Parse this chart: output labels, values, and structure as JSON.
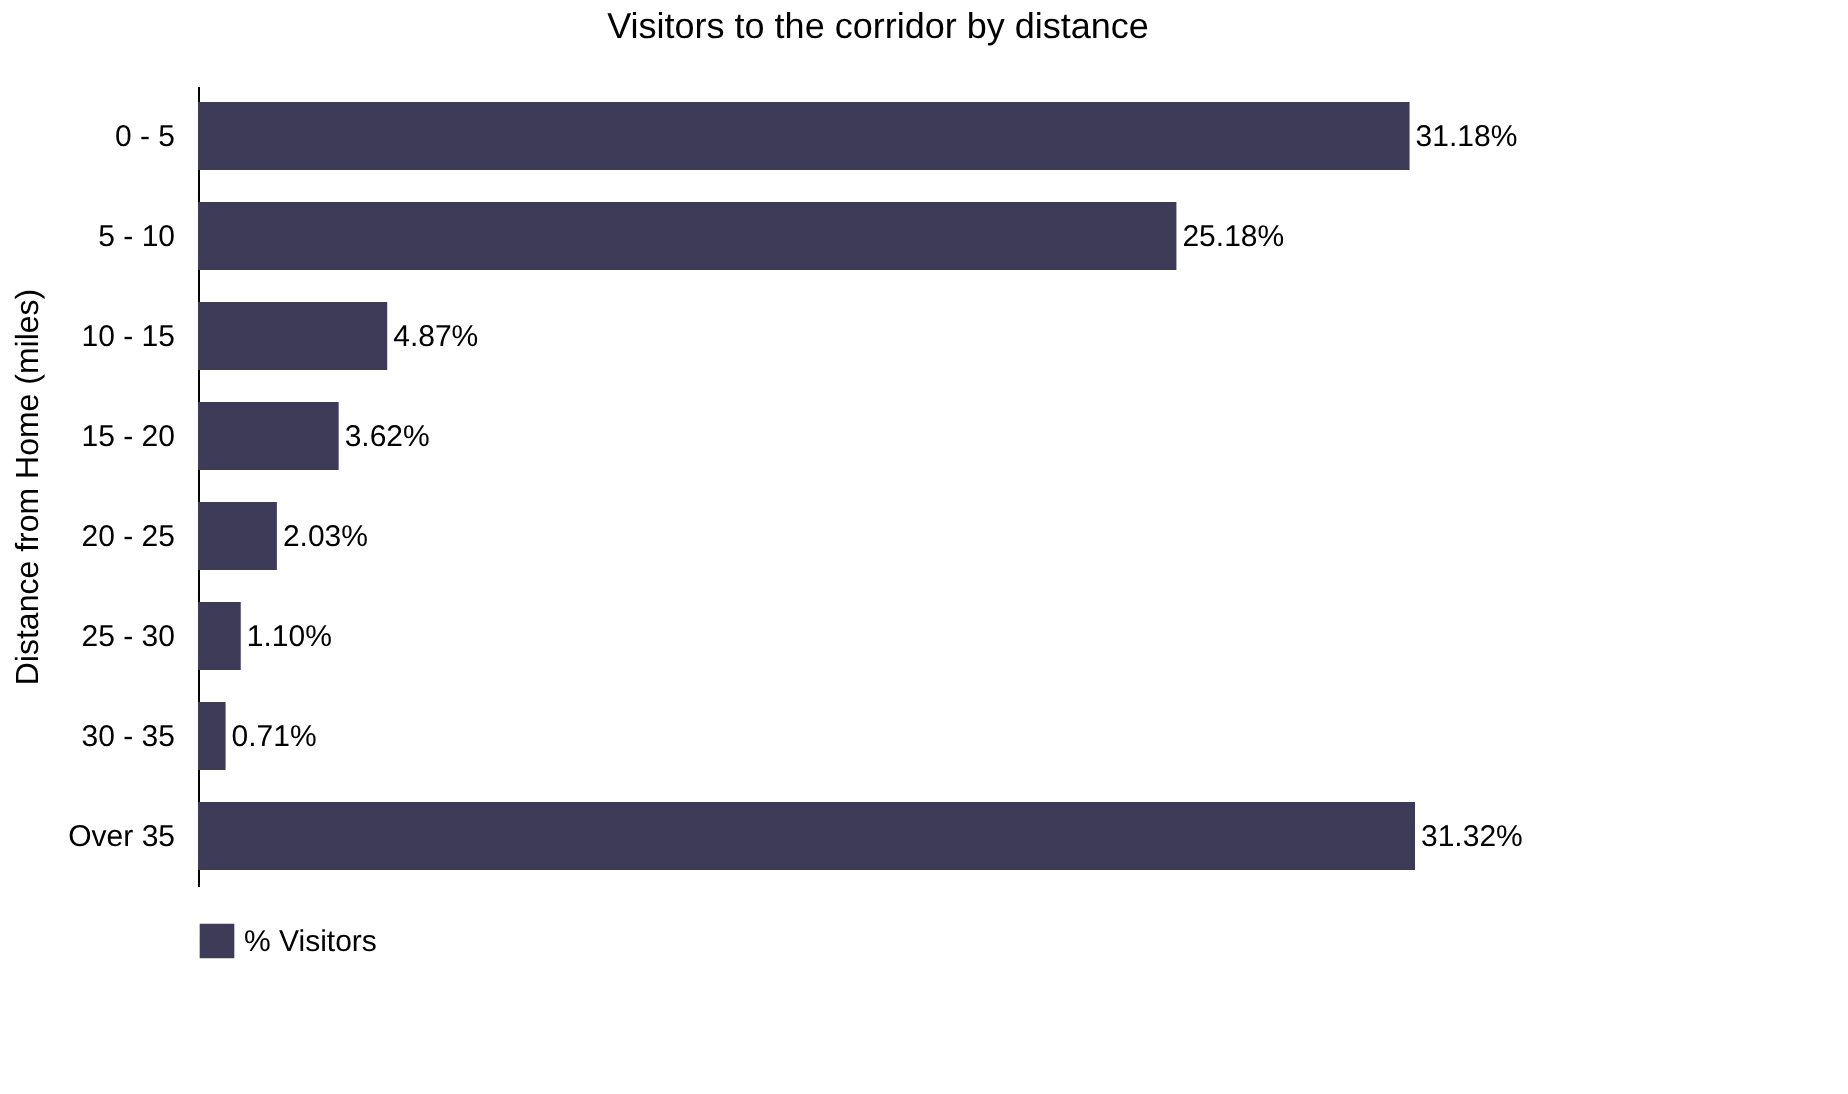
{
  "chart_data": {
    "type": "bar",
    "orientation": "horizontal",
    "title": "Visitors to the corridor by distance",
    "ylabel": "Distance from Home (miles)",
    "categories": [
      "0 - 5",
      "5 - 10",
      "10 - 15",
      "15 - 20",
      "20 - 25",
      "25 - 30",
      "30 - 35",
      "Over 35"
    ],
    "series": [
      {
        "name": "% Visitors",
        "color": "#3d3b58",
        "values": [
          31.18,
          25.18,
          4.87,
          3.62,
          2.03,
          1.1,
          0.71,
          31.32
        ],
        "value_labels": [
          "31.18%",
          "25.18%",
          "4.87%",
          "3.62%",
          "2.03%",
          "1.10%",
          "0.71%",
          "31.32%"
        ]
      }
    ],
    "legend": "bottom",
    "grid": false
  }
}
